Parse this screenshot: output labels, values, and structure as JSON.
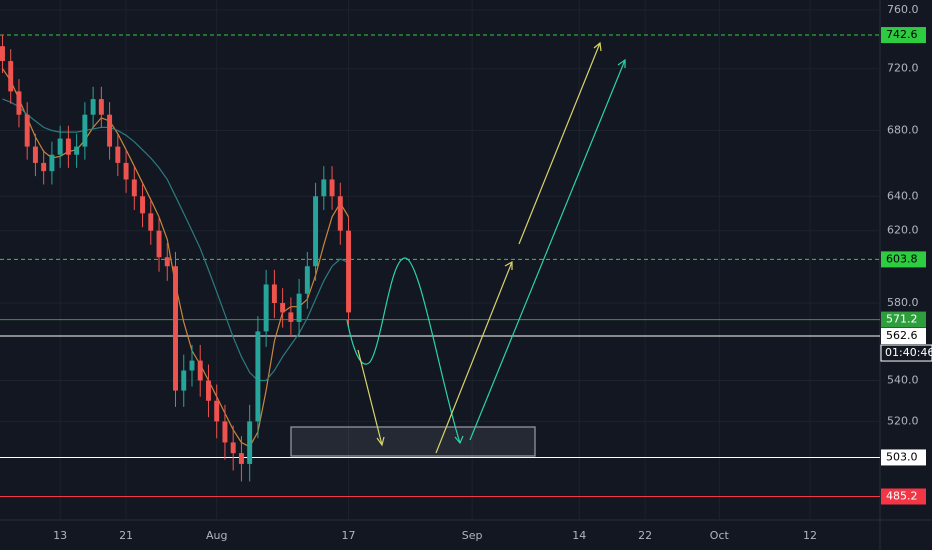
{
  "chart_data": {
    "type": "candlestick",
    "log_scale": true,
    "grid": true,
    "up_color": "#26a69a",
    "down_color": "#ef5350",
    "xlim": [
      5.7,
      112.5
    ],
    "xticks": [
      {
        "value": 13,
        "label": "13"
      },
      {
        "value": 21,
        "label": "21"
      },
      {
        "value": 32,
        "label": "Aug"
      },
      {
        "value": 48,
        "label": "17"
      },
      {
        "value": 63,
        "label": "Sep"
      },
      {
        "value": 76,
        "label": "14"
      },
      {
        "value": 84,
        "label": "22"
      },
      {
        "value": 93,
        "label": "Oct"
      },
      {
        "value": 104,
        "label": "12"
      }
    ],
    "ylim": [
      474.8,
      767.0
    ],
    "yticks": [
      {
        "value": 760,
        "label": "760.0"
      },
      {
        "value": 720,
        "label": "720.0"
      },
      {
        "value": 680,
        "label": "680.0"
      },
      {
        "value": 640,
        "label": "640.0"
      },
      {
        "value": 620,
        "label": "620.0"
      },
      {
        "value": 580,
        "label": "580.0"
      },
      {
        "value": 540,
        "label": "540.0"
      },
      {
        "value": 520,
        "label": "520.0"
      }
    ],
    "x": [
      6,
      7,
      8,
      9,
      10,
      11,
      12,
      13,
      14,
      15,
      16,
      17,
      18,
      19,
      20,
      21,
      22,
      23,
      24,
      25,
      26,
      27,
      28,
      29,
      30,
      31,
      32,
      33,
      34,
      35,
      36,
      37,
      38,
      39,
      40,
      41,
      42,
      43,
      44,
      45,
      46,
      47,
      48
    ],
    "open": [
      735,
      725,
      705,
      690,
      670,
      660,
      655,
      665,
      675,
      665,
      670,
      690,
      700,
      690,
      670,
      660,
      650,
      640,
      630,
      620,
      605,
      600,
      535,
      545,
      550,
      540,
      530,
      520,
      510,
      505,
      500,
      520,
      565,
      590,
      580,
      575,
      570,
      585,
      600,
      640,
      650,
      640,
      620
    ],
    "high": [
      743,
      733,
      713,
      698,
      678,
      668,
      673,
      683,
      683,
      678,
      698,
      708,
      708,
      698,
      678,
      668,
      658,
      648,
      638,
      628,
      613,
      608,
      553,
      558,
      558,
      548,
      538,
      528,
      518,
      513,
      528,
      573,
      598,
      598,
      588,
      583,
      593,
      608,
      648,
      658,
      658,
      648,
      628
    ],
    "low": [
      717,
      697,
      682,
      662,
      652,
      647,
      647,
      657,
      657,
      657,
      662,
      682,
      682,
      662,
      652,
      642,
      632,
      622,
      612,
      597,
      592,
      527,
      527,
      537,
      532,
      522,
      512,
      502,
      497,
      492,
      492,
      512,
      557,
      572,
      567,
      562,
      562,
      577,
      592,
      632,
      632,
      612,
      567
    ],
    "close": [
      725,
      705,
      690,
      670,
      660,
      655,
      665,
      675,
      665,
      670,
      690,
      700,
      690,
      670,
      660,
      650,
      640,
      630,
      620,
      605,
      600,
      535,
      545,
      550,
      540,
      530,
      520,
      510,
      505,
      500,
      520,
      565,
      590,
      580,
      575,
      570,
      585,
      600,
      640,
      650,
      640,
      620,
      575
    ],
    "moving_averages": [
      {
        "color": "#c9863a",
        "values": [
          720,
          712,
          700,
          688,
          676,
          667,
          663,
          664,
          667,
          668,
          674,
          682,
          688,
          686,
          678,
          668,
          658,
          648,
          638,
          628,
          615,
          590,
          570,
          555,
          548,
          540,
          532,
          524,
          516,
          510,
          508,
          515,
          535,
          560,
          575,
          578,
          578,
          582,
          595,
          612,
          628,
          636,
          628
        ]
      },
      {
        "color": "#2b7c80",
        "values": [
          700,
          698,
          695,
          690,
          686,
          682,
          680,
          679,
          679,
          679,
          680,
          681,
          682,
          682,
          680,
          677,
          673,
          668,
          663,
          657,
          650,
          640,
          630,
          620,
          610,
          598,
          586,
          574,
          562,
          552,
          544,
          540,
          540,
          545,
          552,
          558,
          564,
          572,
          582,
          592,
          600,
          604,
          602
        ]
      }
    ],
    "price_lines": [
      {
        "value": 742.6,
        "color": "#2ecc40",
        "dashed": true,
        "label_bg": "#2ecc40",
        "label_color": "#000000"
      },
      {
        "value": 603.8,
        "color": "#2ecc40",
        "dashed": true,
        "label_bg": "#2ecc40",
        "label_color": "#000000"
      },
      {
        "value": 571.2,
        "color": "#2e9e3c",
        "dashed": false,
        "label_bg": "#2e9e3c",
        "label_color": "#ffffff"
      },
      {
        "value": 562.6,
        "color": "#ffffff",
        "dashed": false,
        "label_bg": "#ffffff",
        "label_color": "#000000"
      },
      {
        "value": 503,
        "label": "503.0",
        "color": "#ffffff",
        "dashed": false,
        "label_bg": "#ffffff",
        "label_color": "#000000"
      },
      {
        "value": 485.2,
        "color": "#f23645",
        "dashed": false,
        "label_bg": "#f23645",
        "label_color": "#ffffff"
      }
    ],
    "countdown": "01:40:46"
  }
}
